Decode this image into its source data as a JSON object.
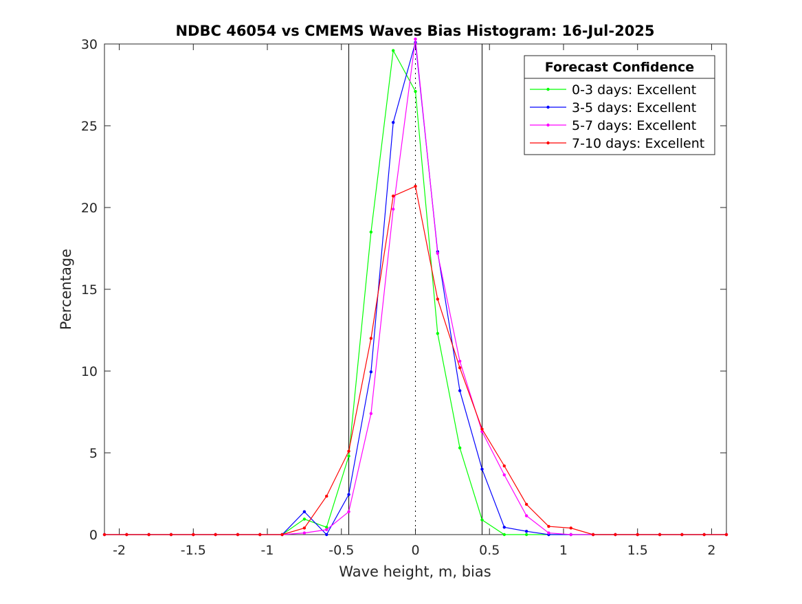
{
  "chart_data": {
    "type": "line",
    "title": "NDBC 46054 vs CMEMS Waves Bias Histogram: 16-Jul-2025",
    "xlabel": "Wave height, m, bias",
    "ylabel": "Percentage",
    "xlim": [
      -2.1,
      2.1
    ],
    "ylim": [
      0,
      30
    ],
    "xticks": [
      -2,
      -1.5,
      -1,
      -0.5,
      0,
      0.5,
      1,
      1.5,
      2
    ],
    "xtick_labels": [
      "-2",
      "-1.5",
      "-1",
      "-0.5",
      "0",
      "0.5",
      "1",
      "1.5",
      "2"
    ],
    "yticks": [
      0,
      5,
      10,
      15,
      20,
      25,
      30
    ],
    "ytick_labels": [
      "0",
      "5",
      "10",
      "15",
      "20",
      "25",
      "30"
    ],
    "grid": false,
    "vertical_lines": [
      -0.45,
      0.45
    ],
    "zero_line": 0,
    "x": [
      -2.1,
      -1.95,
      -1.8,
      -1.65,
      -1.5,
      -1.35,
      -1.2,
      -1.05,
      -0.9,
      -0.75,
      -0.6,
      -0.45,
      -0.3,
      -0.15,
      0,
      0.15,
      0.3,
      0.45,
      0.6,
      0.75,
      0.9,
      1.05,
      1.2,
      1.35,
      1.5,
      1.65,
      1.8,
      1.95,
      2.1
    ],
    "series": [
      {
        "name": "0-3 days: Excellent",
        "color": "#00ff00",
        "values": [
          0,
          0,
          0,
          0,
          0,
          0,
          0,
          0,
          0,
          0.95,
          0.45,
          4.8,
          18.5,
          29.6,
          27.1,
          12.3,
          5.3,
          0.9,
          0,
          0,
          0,
          0,
          0,
          0,
          0,
          0,
          0,
          0,
          0
        ]
      },
      {
        "name": "3-5 days: Excellent",
        "color": "#0000ff",
        "values": [
          0,
          0,
          0,
          0,
          0,
          0,
          0,
          0,
          0,
          1.4,
          0,
          2.45,
          9.95,
          25.2,
          30.1,
          17.3,
          8.8,
          4.0,
          0.45,
          0.2,
          0,
          0,
          0,
          0,
          0,
          0,
          0,
          0,
          0
        ]
      },
      {
        "name": "5-7 days: Excellent",
        "color": "#ff00ff",
        "values": [
          0,
          0,
          0,
          0,
          0,
          0,
          0,
          0,
          0,
          0.1,
          0.3,
          1.4,
          7.4,
          19.9,
          30.3,
          17.2,
          10.6,
          6.3,
          3.65,
          1.15,
          0.1,
          0,
          0,
          0,
          0,
          0,
          0,
          0,
          0
        ]
      },
      {
        "name": "7-10 days: Excellent",
        "color": "#ff0000",
        "values": [
          0,
          0,
          0,
          0,
          0,
          0,
          0,
          0,
          0,
          0.4,
          2.35,
          5.1,
          12.0,
          20.7,
          21.3,
          14.4,
          10.2,
          6.45,
          4.2,
          1.85,
          0.5,
          0.4,
          0,
          0,
          0,
          0,
          0,
          0,
          0
        ]
      }
    ],
    "legend": {
      "title": "Forecast Confidence",
      "placement": "top-right",
      "entries": [
        "0-3 days: Excellent",
        "3-5 days: Excellent",
        "5-7 days: Excellent",
        "7-10 days: Excellent"
      ]
    }
  }
}
